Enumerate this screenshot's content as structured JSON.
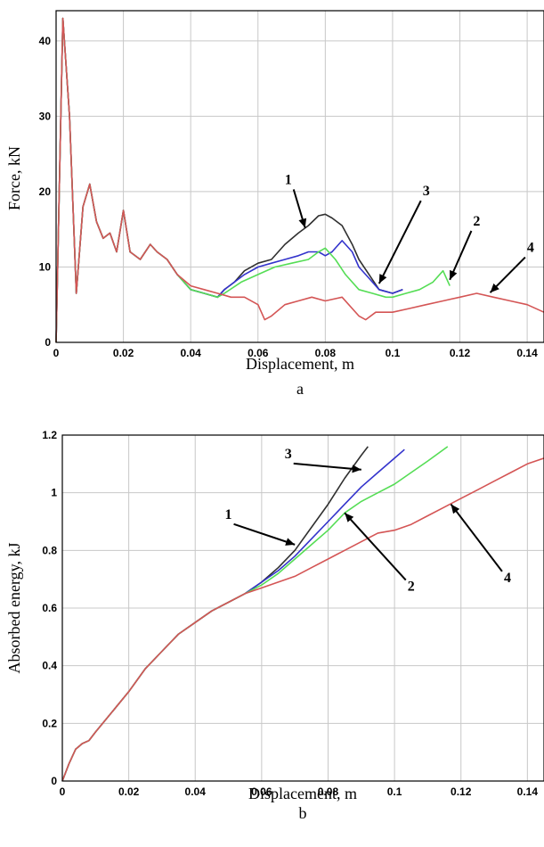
{
  "charts": [
    {
      "type": "line",
      "panel_label": "a",
      "xlabel": "Displacement, m",
      "ylabel": "Force, kN",
      "xlim": [
        0,
        0.145
      ],
      "ylim": [
        0,
        44
      ],
      "xticks": [
        0,
        0.02,
        0.04,
        0.06,
        0.08,
        0.1,
        0.12,
        0.14
      ],
      "xtick_labels": [
        "0",
        "0.02",
        "0.04",
        "0.06",
        "0.08",
        "0.1",
        "0.12",
        "0.14"
      ],
      "yticks": [
        0,
        10,
        20,
        30,
        40
      ],
      "ytick_labels": [
        "0",
        "10",
        "20",
        "30",
        "40"
      ],
      "grid": true,
      "series": [
        {
          "color": "#303030",
          "x": [
            0,
            0.002,
            0.004,
            0.006,
            0.008,
            0.01,
            0.012,
            0.014,
            0.016,
            0.018,
            0.02,
            0.022,
            0.025,
            0.028,
            0.03,
            0.033,
            0.036,
            0.04,
            0.044,
            0.048,
            0.05,
            0.053,
            0.056,
            0.06,
            0.064,
            0.068,
            0.072,
            0.075,
            0.078,
            0.08,
            0.082,
            0.085,
            0.088,
            0.09,
            0.093,
            0.096,
            0.1,
            0.103
          ],
          "y": [
            0,
            43,
            30,
            6.5,
            18,
            21,
            16,
            13.8,
            14.5,
            12,
            17.5,
            12,
            11,
            13,
            12,
            11,
            9,
            7,
            6.5,
            6,
            7,
            8,
            9.5,
            10.5,
            11,
            13,
            14.5,
            15.5,
            16.8,
            17,
            16.5,
            15.5,
            13,
            11,
            9,
            7,
            6.5,
            7
          ]
        },
        {
          "color": "#3333cc",
          "x": [
            0,
            0.002,
            0.004,
            0.006,
            0.008,
            0.01,
            0.012,
            0.014,
            0.016,
            0.018,
            0.02,
            0.022,
            0.025,
            0.028,
            0.03,
            0.033,
            0.036,
            0.04,
            0.044,
            0.048,
            0.05,
            0.053,
            0.056,
            0.06,
            0.064,
            0.068,
            0.072,
            0.075,
            0.078,
            0.08,
            0.082,
            0.085,
            0.088,
            0.09,
            0.093,
            0.096,
            0.1,
            0.103
          ],
          "y": [
            0,
            43,
            30,
            6.5,
            18,
            21,
            16,
            13.8,
            14.5,
            12,
            17.5,
            12,
            11,
            13,
            12,
            11,
            9,
            7,
            6.5,
            6,
            7,
            8,
            9,
            10,
            10.5,
            11,
            11.5,
            12,
            12,
            11.5,
            12,
            13.5,
            12,
            10,
            8.5,
            7,
            6.5,
            7
          ]
        },
        {
          "color": "#55dd55",
          "x": [
            0,
            0.002,
            0.004,
            0.006,
            0.008,
            0.01,
            0.012,
            0.014,
            0.016,
            0.018,
            0.02,
            0.022,
            0.025,
            0.028,
            0.03,
            0.033,
            0.036,
            0.04,
            0.044,
            0.048,
            0.05,
            0.055,
            0.06,
            0.065,
            0.07,
            0.075,
            0.078,
            0.08,
            0.083,
            0.086,
            0.09,
            0.094,
            0.098,
            0.1,
            0.104,
            0.108,
            0.112,
            0.115,
            0.117
          ],
          "y": [
            0,
            43,
            30,
            6.5,
            18,
            21,
            16,
            13.8,
            14.5,
            12,
            17.5,
            12,
            11,
            13,
            12,
            11,
            9,
            7,
            6.5,
            6,
            6.5,
            8,
            9,
            10,
            10.5,
            11,
            12,
            12.5,
            11,
            9,
            7,
            6.5,
            6,
            6,
            6.5,
            7,
            8,
            9.5,
            7.5
          ]
        },
        {
          "color": "#d45555",
          "x": [
            0,
            0.002,
            0.004,
            0.006,
            0.008,
            0.01,
            0.012,
            0.014,
            0.016,
            0.018,
            0.02,
            0.022,
            0.025,
            0.028,
            0.03,
            0.033,
            0.036,
            0.04,
            0.044,
            0.048,
            0.052,
            0.056,
            0.06,
            0.062,
            0.064,
            0.068,
            0.072,
            0.076,
            0.08,
            0.085,
            0.09,
            0.092,
            0.095,
            0.1,
            0.105,
            0.11,
            0.115,
            0.12,
            0.125,
            0.13,
            0.135,
            0.14,
            0.145
          ],
          "y": [
            0,
            43,
            30,
            6.5,
            18,
            21,
            16,
            13.8,
            14.5,
            12,
            17.5,
            12,
            11,
            13,
            12,
            11,
            9,
            7.5,
            7,
            6.5,
            6,
            6,
            5,
            3,
            3.5,
            5,
            5.5,
            6,
            5.5,
            6,
            3.5,
            3,
            4,
            4,
            4.5,
            5,
            5.5,
            6,
            6.5,
            6,
            5.5,
            5,
            4
          ]
        }
      ],
      "annotations": [
        {
          "text": "1",
          "x": 0.069,
          "y": 21
        },
        {
          "text": "3",
          "x": 0.11,
          "y": 19.5
        },
        {
          "text": "2",
          "x": 0.125,
          "y": 15.5
        },
        {
          "text": "4",
          "x": 0.141,
          "y": 12
        }
      ]
    },
    {
      "type": "line",
      "panel_label": "b",
      "xlabel": "Displacement, m",
      "ylabel": "Absorbed energy, kJ",
      "xlim": [
        0,
        0.145
      ],
      "ylim": [
        0,
        1.2
      ],
      "xticks": [
        0,
        0.02,
        0.04,
        0.06,
        0.08,
        0.1,
        0.12,
        0.14
      ],
      "xtick_labels": [
        "0",
        "0.02",
        "0.04",
        "0.06",
        "0.08",
        "0.1",
        "0.12",
        "0.14"
      ],
      "yticks": [
        0,
        0.2,
        0.4,
        0.6,
        0.8,
        1.0,
        1.2
      ],
      "ytick_labels": [
        "0",
        "0.2",
        "0.4",
        "0.6",
        "0.8",
        "1",
        "1.2"
      ],
      "grid": true,
      "series": [
        {
          "color": "#303030",
          "x": [
            0,
            0.002,
            0.004,
            0.006,
            0.008,
            0.01,
            0.015,
            0.02,
            0.025,
            0.03,
            0.035,
            0.04,
            0.045,
            0.05,
            0.055,
            0.06,
            0.065,
            0.07,
            0.075,
            0.08,
            0.085,
            0.09,
            0.092
          ],
          "y": [
            0,
            0.06,
            0.11,
            0.13,
            0.14,
            0.17,
            0.24,
            0.31,
            0.39,
            0.45,
            0.51,
            0.55,
            0.59,
            0.62,
            0.65,
            0.69,
            0.74,
            0.8,
            0.88,
            0.96,
            1.05,
            1.13,
            1.16
          ]
        },
        {
          "color": "#3333cc",
          "x": [
            0,
            0.002,
            0.004,
            0.006,
            0.008,
            0.01,
            0.015,
            0.02,
            0.025,
            0.03,
            0.035,
            0.04,
            0.045,
            0.05,
            0.055,
            0.06,
            0.065,
            0.07,
            0.075,
            0.08,
            0.085,
            0.09,
            0.095,
            0.1,
            0.103
          ],
          "y": [
            0,
            0.06,
            0.11,
            0.13,
            0.14,
            0.17,
            0.24,
            0.31,
            0.39,
            0.45,
            0.51,
            0.55,
            0.59,
            0.62,
            0.65,
            0.69,
            0.73,
            0.78,
            0.84,
            0.9,
            0.96,
            1.02,
            1.07,
            1.12,
            1.15
          ]
        },
        {
          "color": "#55dd55",
          "x": [
            0,
            0.002,
            0.004,
            0.006,
            0.008,
            0.01,
            0.015,
            0.02,
            0.025,
            0.03,
            0.035,
            0.04,
            0.045,
            0.05,
            0.055,
            0.06,
            0.065,
            0.07,
            0.075,
            0.08,
            0.085,
            0.09,
            0.095,
            0.1,
            0.105,
            0.11,
            0.116
          ],
          "y": [
            0,
            0.06,
            0.11,
            0.13,
            0.14,
            0.17,
            0.24,
            0.31,
            0.39,
            0.45,
            0.51,
            0.55,
            0.59,
            0.62,
            0.65,
            0.68,
            0.72,
            0.77,
            0.82,
            0.87,
            0.93,
            0.97,
            1.0,
            1.03,
            1.07,
            1.11,
            1.16
          ]
        },
        {
          "color": "#d45555",
          "x": [
            0,
            0.002,
            0.004,
            0.006,
            0.008,
            0.01,
            0.015,
            0.02,
            0.025,
            0.03,
            0.035,
            0.04,
            0.045,
            0.05,
            0.055,
            0.06,
            0.065,
            0.07,
            0.075,
            0.08,
            0.085,
            0.09,
            0.095,
            0.1,
            0.105,
            0.11,
            0.115,
            0.12,
            0.125,
            0.13,
            0.135,
            0.14,
            0.145
          ],
          "y": [
            0,
            0.06,
            0.11,
            0.13,
            0.14,
            0.17,
            0.24,
            0.31,
            0.39,
            0.45,
            0.51,
            0.55,
            0.59,
            0.62,
            0.65,
            0.67,
            0.69,
            0.71,
            0.74,
            0.77,
            0.8,
            0.83,
            0.86,
            0.87,
            0.89,
            0.92,
            0.95,
            0.98,
            1.01,
            1.04,
            1.07,
            1.1,
            1.12
          ]
        }
      ],
      "annotations": [
        {
          "text": "3",
          "x": 0.068,
          "y": 1.12
        },
        {
          "text": "1",
          "x": 0.05,
          "y": 0.91
        },
        {
          "text": "2",
          "x": 0.105,
          "y": 0.66
        },
        {
          "text": "4",
          "x": 0.134,
          "y": 0.69
        }
      ]
    }
  ],
  "colors": {
    "grid": "#c8c8c8",
    "axis": "#000000"
  }
}
